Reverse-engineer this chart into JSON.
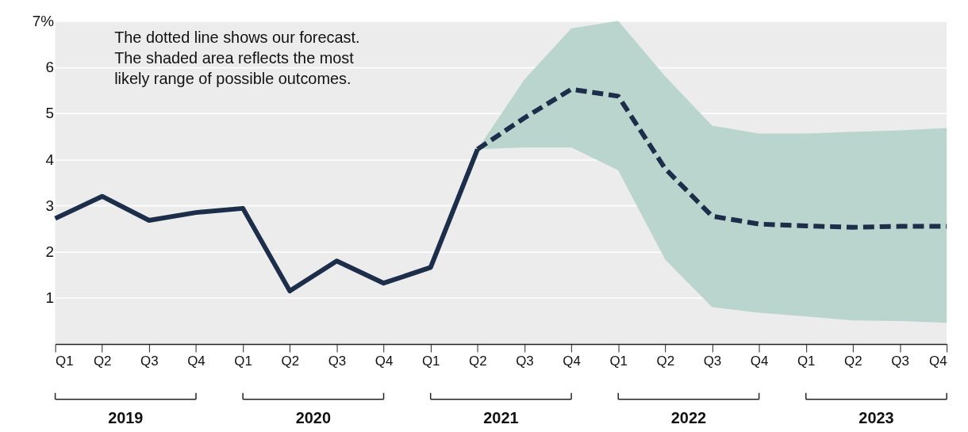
{
  "chart_data": {
    "type": "line",
    "categories": [
      "Q1",
      "Q2",
      "Q3",
      "Q4",
      "Q1",
      "Q2",
      "Q3",
      "Q4",
      "Q1",
      "Q2",
      "Q3",
      "Q4",
      "Q1",
      "Q2",
      "Q3",
      "Q4",
      "Q1",
      "Q2",
      "Q3",
      "Q4"
    ],
    "series": [
      {
        "color": "#1c2e4a",
        "line_style": "solid",
        "values": [
          2.72,
          3.2,
          2.68,
          2.85,
          2.94,
          1.15,
          1.8,
          1.32,
          1.66,
          4.22,
          null,
          null,
          null,
          null,
          null,
          null,
          null,
          null,
          null,
          null
        ]
      },
      {
        "color": "#1c2e4a",
        "line_style": "dashed",
        "values": [
          null,
          null,
          null,
          null,
          null,
          null,
          null,
          null,
          null,
          4.22,
          4.9,
          5.52,
          5.37,
          3.8,
          2.77,
          2.6,
          2.56,
          2.53,
          2.55,
          2.55
        ],
        "lower": [
          null,
          null,
          null,
          null,
          null,
          null,
          null,
          null,
          null,
          4.22,
          4.26,
          4.26,
          3.76,
          1.83,
          0.8,
          0.68,
          0.6,
          0.51,
          0.5,
          0.46
        ],
        "upper": [
          null,
          null,
          null,
          null,
          null,
          null,
          null,
          null,
          null,
          4.22,
          5.73,
          6.84,
          7.0,
          5.8,
          4.73,
          4.56,
          4.56,
          4.6,
          4.63,
          4.68
        ]
      }
    ],
    "ylim": [
      0,
      7
    ],
    "yticks": [
      1,
      2,
      3,
      4,
      5,
      6,
      {
        "value": 7,
        "label": "7%"
      }
    ],
    "grid": "y",
    "annotations": [
      "The dotted line shows our forecast.\nThe shaded area reflects the most\nlikely range of possible outcomes.",
      "2019",
      "2020",
      "2021",
      "2022",
      "2023"
    ]
  }
}
